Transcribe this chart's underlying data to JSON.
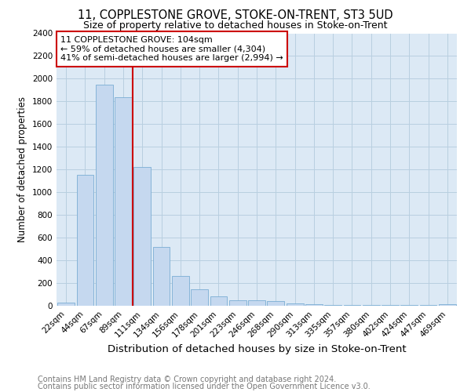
{
  "title1": "11, COPPLESTONE GROVE, STOKE-ON-TRENT, ST3 5UD",
  "title2": "Size of property relative to detached houses in Stoke-on-Trent",
  "xlabel": "Distribution of detached houses by size in Stoke-on-Trent",
  "ylabel": "Number of detached properties",
  "categories": [
    "22sqm",
    "44sqm",
    "67sqm",
    "89sqm",
    "111sqm",
    "134sqm",
    "156sqm",
    "178sqm",
    "201sqm",
    "223sqm",
    "246sqm",
    "268sqm",
    "290sqm",
    "313sqm",
    "335sqm",
    "357sqm",
    "380sqm",
    "402sqm",
    "424sqm",
    "447sqm",
    "469sqm"
  ],
  "values": [
    30,
    1150,
    1950,
    1840,
    1220,
    520,
    265,
    145,
    80,
    50,
    50,
    40,
    20,
    15,
    10,
    5,
    5,
    10,
    5,
    5,
    15
  ],
  "bar_color": "#c5d8ef",
  "bar_edge_color": "#7aadd4",
  "vline_x_index": 4,
  "vline_color": "#cc0000",
  "annotation_text": "11 COPPLESTONE GROVE: 104sqm\n← 59% of detached houses are smaller (4,304)\n41% of semi-detached houses are larger (2,994) →",
  "annotation_box_color": "#ffffff",
  "annotation_box_edge": "#cc0000",
  "ylim": [
    0,
    2400
  ],
  "yticks": [
    0,
    200,
    400,
    600,
    800,
    1000,
    1200,
    1400,
    1600,
    1800,
    2000,
    2200,
    2400
  ],
  "footer1": "Contains HM Land Registry data © Crown copyright and database right 2024.",
  "footer2": "Contains public sector information licensed under the Open Government Licence v3.0.",
  "bg_color": "#ffffff",
  "ax_bg_color": "#dce9f5",
  "grid_color": "#b8cfe0",
  "title1_fontsize": 10.5,
  "title2_fontsize": 9,
  "xlabel_fontsize": 9.5,
  "ylabel_fontsize": 8.5,
  "tick_fontsize": 7.5,
  "footer_fontsize": 7,
  "annotation_fontsize": 8
}
